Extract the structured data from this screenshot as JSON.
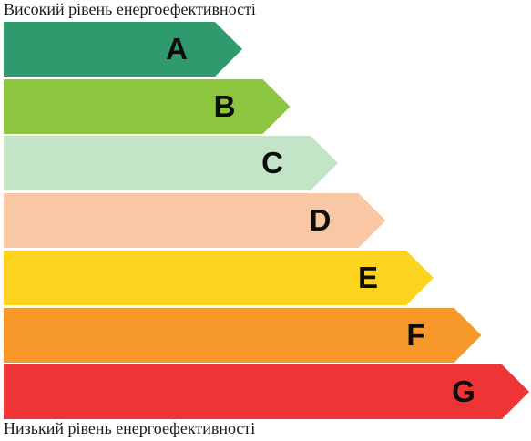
{
  "captions": {
    "top": "Високий рівень енергоефективності",
    "bottom": "Низький рівень енергоефективності"
  },
  "classes": [
    {
      "letter": "A",
      "color": "#2e9a6e"
    },
    {
      "letter": "B",
      "color": "#8cc63f"
    },
    {
      "letter": "C",
      "color": "#c4e4c8"
    },
    {
      "letter": "D",
      "color": "#f9c7a3"
    },
    {
      "letter": "E",
      "color": "#fcd31e"
    },
    {
      "letter": "F",
      "color": "#f7982a"
    },
    {
      "letter": "G",
      "color": "#ee3434"
    }
  ]
}
